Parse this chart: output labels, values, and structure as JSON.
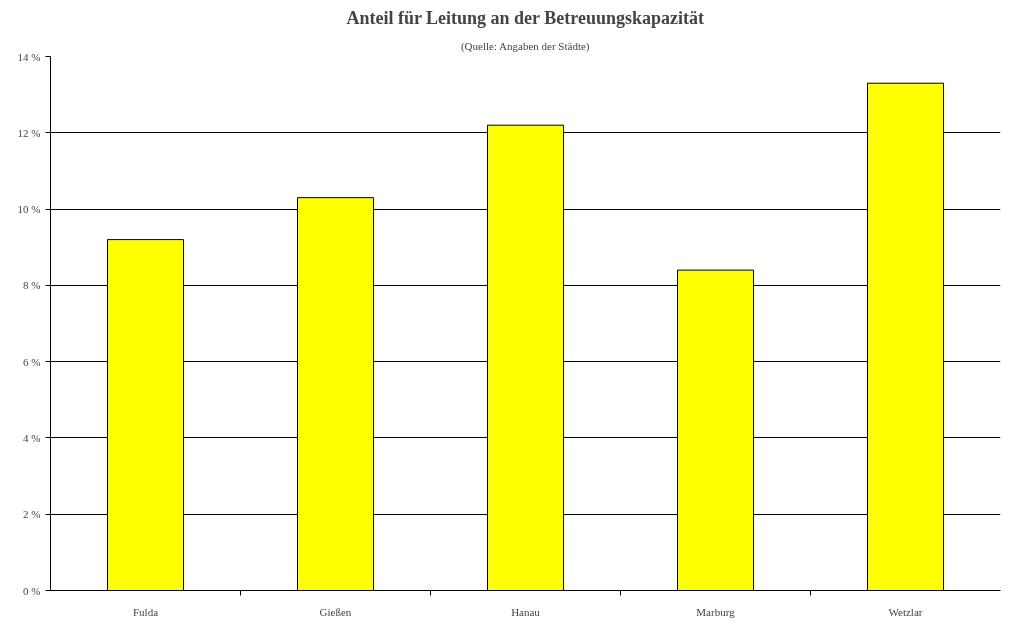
{
  "chart_data": {
    "type": "bar",
    "title": "Anteil für Leitung an der Betreuungskapazität",
    "subtitle": "(Quelle: Angaben der Städte)",
    "categories": [
      "Fulda",
      "Gießen",
      "Hanau",
      "Marburg",
      "Wetzlar"
    ],
    "values": [
      9.2,
      10.3,
      12.2,
      8.4,
      13.3
    ],
    "color": "#ffff00",
    "ylim": [
      0,
      14
    ],
    "yticks": [
      {
        "value": 0,
        "label": "0 %"
      },
      {
        "value": 2,
        "label": "2 %"
      },
      {
        "value": 4,
        "label": "4 %"
      },
      {
        "value": 6,
        "label": "6 %"
      },
      {
        "value": 8,
        "label": "8 %"
      },
      {
        "value": 10,
        "label": "10 %"
      },
      {
        "value": 12,
        "label": "12 %"
      },
      {
        "value": 14,
        "label": "14 %"
      }
    ],
    "grid": "y"
  }
}
